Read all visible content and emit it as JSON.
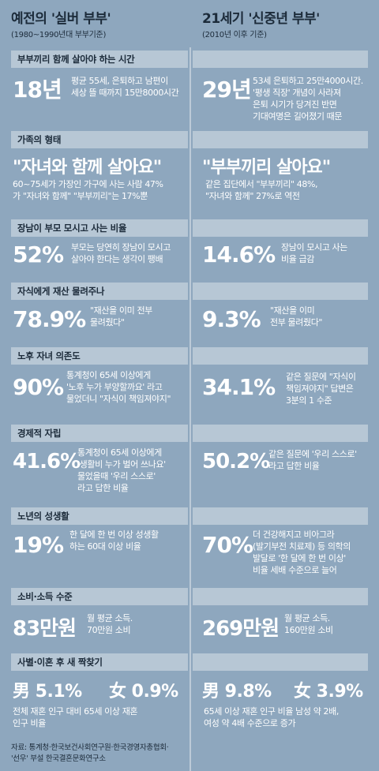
{
  "header": {
    "left_title": "예전의 '실버 부부'",
    "left_sub": "(1980~1990년대 부부기준)",
    "right_title": "21세기 '신중년 부부'",
    "right_sub": "(2010년 이후 기준)"
  },
  "sections": [
    {
      "label": "부부끼리 함께 살아야 하는 시간",
      "left_big": "18년",
      "left_desc": "평균 55세, 은퇴하고 남편이\n세상 뜰 때까지 15만8000시간",
      "right_big": "29년",
      "right_desc": "53세 은퇴하고 25만4000시간.\n'평생 직장' 개념이 사라져\n은퇴 시기가 당겨진 반면\n기대여명은 길어졌기 때문"
    },
    {
      "label": "가족의 형태",
      "left_big": "\"자녀와 함께 살아요\"",
      "left_desc": "60~75세가 가장인 가구에 사는 사람 47%\n가 \"자녀와 함께\" \"부부끼리\"는 17%뿐",
      "right_big": "\"부부끼리 살아요\"",
      "right_desc": "같은 집단에서 \"부부끼리\" 48%,\n\"자녀와 함께\" 27%로 역전"
    },
    {
      "label": "장남이 부모 모시고 사는 비율",
      "left_big": "52%",
      "left_desc": "부모는 당연히 장남이 모시고\n살아야 한다는 생각이 팽배",
      "right_big": "14.6%",
      "right_desc": "장남이 모시고 사는\n비율 급감"
    },
    {
      "label": "자식에게 재산 물려주나",
      "left_big": "78.9%",
      "left_desc": "\"재산을 이미 전부\n물려줬다\"",
      "right_big": "9.3%",
      "right_desc": "\"재산을 이미\n전부 물려줬다\""
    },
    {
      "label": "노후 자녀 의존도",
      "left_big": "90%",
      "left_desc": "통계청이 65세 이상에게\n'노후 누가 부양할까요' 라고\n물었더니 \"자식이 책임져야지\"",
      "right_big": "34.1%",
      "right_desc": "같은 질문에 \"자식이\n책임져야지\" 답변은\n3분의 1 수준"
    },
    {
      "label": "경제적 자립",
      "left_big": "41.6%",
      "left_desc": "통계청이 65세 이상에게\n'생활비 누가 벌어 쓰나요'\n물었을때 '우리 스스로'\n라고 답한 비율",
      "right_big": "50.2%",
      "right_desc": "같은 질문에 '우리 스스로'\n라고 답한 비율"
    },
    {
      "label": "노년의 성생활",
      "left_big": "19%",
      "left_desc": "한 달에 한 번 이상 성생활\n하는 60대 이상 비율",
      "right_big": "70%",
      "right_desc": "더 건강해지고 비아그라\n(발기부전 치료제) 등 의학의\n발달로 '한 달에 한 번 이상'\n비율 세배 수준으로 늘어"
    },
    {
      "label": "소비·소득 수준",
      "left_big": "83만원",
      "left_desc": "월 평균 소득.\n70만원 소비",
      "right_big": "269만원",
      "right_desc": "월 평균 소득.\n160만원 소비"
    },
    {
      "label": "사별·이혼 후 새 짝찾기",
      "left_male": "男 5.1%",
      "left_female": "女 0.9%",
      "left_desc": "전체 재혼 인구 대비 65세 이상 재혼\n인구 비율",
      "right_male": "男 9.8%",
      "right_female": "女 3.9%",
      "right_desc": "65세 이상 재혼 인구 비율 남성 약 2배,\n여성 약 4배 수준으로 증가"
    }
  ],
  "footer": "자료: 통계청·한국보건사회연구원·한국경영자총협회·\n'선우' 부설 한국결혼문화연구소"
}
